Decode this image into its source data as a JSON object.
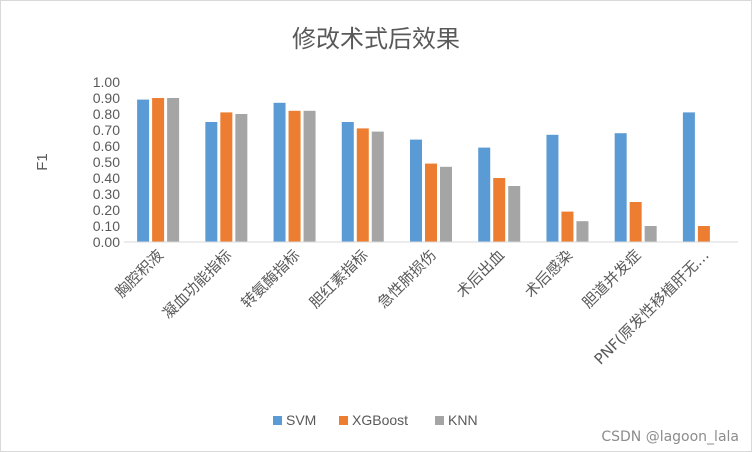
{
  "chart_data": {
    "type": "bar",
    "title": "修改术式后效果",
    "ylabel": "F1",
    "xlabel": "",
    "ylim": [
      0,
      1.0
    ],
    "ytick_step": 0.1,
    "yticks": [
      "0.00",
      "0.10",
      "0.20",
      "0.30",
      "0.40",
      "0.50",
      "0.60",
      "0.70",
      "0.80",
      "0.90",
      "1.00"
    ],
    "grid": false,
    "legend_position": "bottom",
    "categories": [
      "胸腔积液",
      "凝血功能指标",
      "转氨酶指标",
      "胆红素指标",
      "急性肺损伤",
      "术后出血",
      "术后感染",
      "胆道并发症",
      "PNF(原发性移植肝无…"
    ],
    "series": [
      {
        "name": "SVM",
        "color": "#5b9bd5",
        "values": [
          0.89,
          0.75,
          0.87,
          0.75,
          0.64,
          0.59,
          0.67,
          0.68,
          0.81
        ]
      },
      {
        "name": "XGBoost",
        "color": "#ed7d31",
        "values": [
          0.9,
          0.81,
          0.82,
          0.71,
          0.49,
          0.4,
          0.19,
          0.25,
          0.1
        ]
      },
      {
        "name": "KNN",
        "color": "#a5a5a5",
        "values": [
          0.9,
          0.8,
          0.82,
          0.69,
          0.47,
          0.35,
          0.13,
          0.1,
          null
        ]
      }
    ]
  },
  "watermark": "CSDN @lagoon_lala"
}
